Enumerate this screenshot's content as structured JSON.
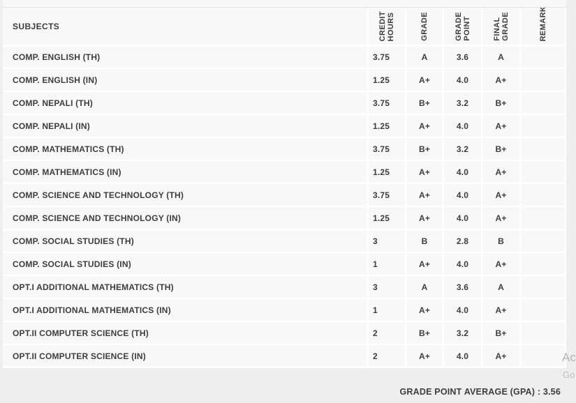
{
  "table": {
    "header": {
      "subjects": "SUBJECTS",
      "credit_hours": "CREDIT\nHOURS",
      "grade": "GRADE",
      "grade_point": "GRADE\nPOINT",
      "final_grade": "FINAL\nGRADE",
      "remarks": "REMARKS"
    },
    "rows": [
      {
        "subject": "COMP. ENGLISH (TH)",
        "credit_hours": "3.75",
        "grade": "A",
        "grade_point": "3.6",
        "final_grade": "A",
        "remarks": ""
      },
      {
        "subject": "COMP. ENGLISH (IN)",
        "credit_hours": "1.25",
        "grade": "A+",
        "grade_point": "4.0",
        "final_grade": "A+",
        "remarks": ""
      },
      {
        "subject": "COMP. NEPALI (TH)",
        "credit_hours": "3.75",
        "grade": "B+",
        "grade_point": "3.2",
        "final_grade": "B+",
        "remarks": ""
      },
      {
        "subject": "COMP. NEPALI (IN)",
        "credit_hours": "1.25",
        "grade": "A+",
        "grade_point": "4.0",
        "final_grade": "A+",
        "remarks": ""
      },
      {
        "subject": "COMP. MATHEMATICS (TH)",
        "credit_hours": "3.75",
        "grade": "B+",
        "grade_point": "3.2",
        "final_grade": "B+",
        "remarks": ""
      },
      {
        "subject": "COMP. MATHEMATICS (IN)",
        "credit_hours": "1.25",
        "grade": "A+",
        "grade_point": "4.0",
        "final_grade": "A+",
        "remarks": ""
      },
      {
        "subject": "COMP. SCIENCE AND TECHNOLOGY (TH)",
        "credit_hours": "3.75",
        "grade": "A+",
        "grade_point": "4.0",
        "final_grade": "A+",
        "remarks": ""
      },
      {
        "subject": "COMP. SCIENCE AND TECHNOLOGY (IN)",
        "credit_hours": "1.25",
        "grade": "A+",
        "grade_point": "4.0",
        "final_grade": "A+",
        "remarks": ""
      },
      {
        "subject": "COMP. SOCIAL STUDIES (TH)",
        "credit_hours": "3",
        "grade": "B",
        "grade_point": "2.8",
        "final_grade": "B",
        "remarks": ""
      },
      {
        "subject": "COMP. SOCIAL STUDIES (IN)",
        "credit_hours": "1",
        "grade": "A+",
        "grade_point": "4.0",
        "final_grade": "A+",
        "remarks": ""
      },
      {
        "subject": "OPT.I ADDITIONAL MATHEMATICS (TH)",
        "credit_hours": "3",
        "grade": "A",
        "grade_point": "3.6",
        "final_grade": "A",
        "remarks": ""
      },
      {
        "subject": "OPT.I ADDITIONAL MATHEMATICS (IN)",
        "credit_hours": "1",
        "grade": "A+",
        "grade_point": "4.0",
        "final_grade": "A+",
        "remarks": ""
      },
      {
        "subject": "OPT.II COMPUTER SCIENCE (TH)",
        "credit_hours": "2",
        "grade": "B+",
        "grade_point": "3.2",
        "final_grade": "B+",
        "remarks": ""
      },
      {
        "subject": "OPT.II COMPUTER SCIENCE (IN)",
        "credit_hours": "2",
        "grade": "A+",
        "grade_point": "4.0",
        "final_grade": "A+",
        "remarks": ""
      }
    ],
    "footer_gpa": "GRADE POINT AVERAGE (GPA) : 3.56"
  },
  "watermark": {
    "line1": "Ac",
    "line2": "Go"
  },
  "colors": {
    "page_bg": "#eeeeee",
    "row_bg": "#f8f8f8",
    "cell_border": "#ffffff",
    "text": "#3e3c3c",
    "watermark": "#b5b5b5"
  }
}
